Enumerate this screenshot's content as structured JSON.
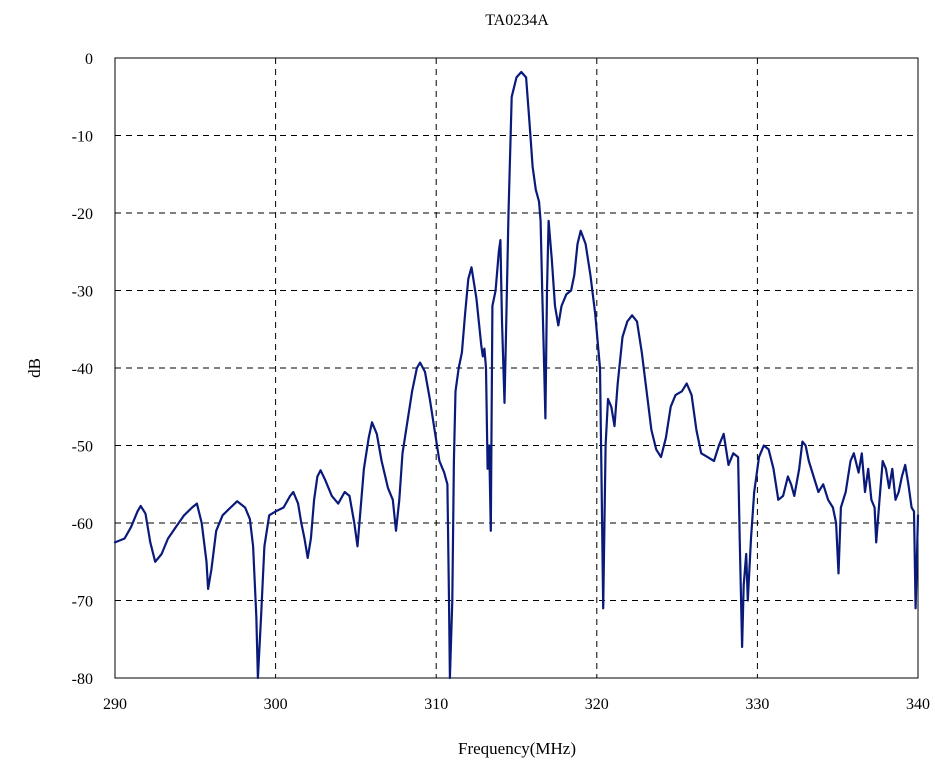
{
  "chart_data": {
    "type": "line",
    "title": "TA0234A",
    "xlabel": "Frequency(MHz)",
    "ylabel": "dB",
    "xlim": [
      290,
      340
    ],
    "ylim": [
      -80,
      0
    ],
    "x_ticks": [
      290,
      300,
      310,
      320,
      330,
      340
    ],
    "y_ticks": [
      0,
      -10,
      -20,
      -30,
      -40,
      -50,
      -60,
      -70,
      -80
    ],
    "x_tick_labels": [
      "290",
      "300",
      "310",
      "320",
      "330",
      "340"
    ],
    "y_tick_labels": [
      "0",
      "-10",
      "-20",
      "-30",
      "-40",
      "-50",
      "-60",
      "-70",
      "-80"
    ],
    "grid": true,
    "legend": "none",
    "series": [
      {
        "color": "#0a1a7a",
        "points": [
          [
            290.0,
            -62.5
          ],
          [
            290.6,
            -62
          ],
          [
            291.0,
            -60.5
          ],
          [
            291.4,
            -58.5
          ],
          [
            291.6,
            -57.8
          ],
          [
            291.9,
            -58.8
          ],
          [
            292.2,
            -62.5
          ],
          [
            292.5,
            -65
          ],
          [
            292.9,
            -64
          ],
          [
            293.3,
            -62
          ],
          [
            293.8,
            -60.5
          ],
          [
            294.3,
            -59
          ],
          [
            294.8,
            -58
          ],
          [
            295.1,
            -57.5
          ],
          [
            295.4,
            -60
          ],
          [
            295.7,
            -65
          ],
          [
            295.8,
            -68.5
          ],
          [
            296.0,
            -66
          ],
          [
            296.3,
            -61
          ],
          [
            296.7,
            -59
          ],
          [
            297.2,
            -58
          ],
          [
            297.6,
            -57.2
          ],
          [
            298.1,
            -58
          ],
          [
            298.4,
            -59.5
          ],
          [
            298.6,
            -63
          ],
          [
            298.8,
            -72
          ],
          [
            298.9,
            -80
          ],
          [
            299.1,
            -72
          ],
          [
            299.3,
            -63
          ],
          [
            299.6,
            -59
          ],
          [
            300.0,
            -58.5
          ],
          [
            300.5,
            -58
          ],
          [
            300.9,
            -56.5
          ],
          [
            301.1,
            -56
          ],
          [
            301.4,
            -57.5
          ],
          [
            301.6,
            -60
          ],
          [
            301.8,
            -62
          ],
          [
            302.0,
            -64.5
          ],
          [
            302.2,
            -62
          ],
          [
            302.4,
            -57
          ],
          [
            302.6,
            -54
          ],
          [
            302.8,
            -53.2
          ],
          [
            303.1,
            -54.5
          ],
          [
            303.5,
            -56.5
          ],
          [
            303.9,
            -57.5
          ],
          [
            304.3,
            -56
          ],
          [
            304.6,
            -56.5
          ],
          [
            304.9,
            -60
          ],
          [
            305.1,
            -63
          ],
          [
            305.3,
            -58
          ],
          [
            305.5,
            -53
          ],
          [
            305.8,
            -49
          ],
          [
            306.0,
            -47
          ],
          [
            306.3,
            -48.5
          ],
          [
            306.6,
            -52
          ],
          [
            307.0,
            -55.5
          ],
          [
            307.3,
            -57
          ],
          [
            307.5,
            -61
          ],
          [
            307.7,
            -57
          ],
          [
            307.9,
            -51
          ],
          [
            308.2,
            -47
          ],
          [
            308.5,
            -43
          ],
          [
            308.8,
            -40
          ],
          [
            309.0,
            -39.3
          ],
          [
            309.3,
            -40.5
          ],
          [
            309.6,
            -44
          ],
          [
            309.9,
            -48
          ],
          [
            310.2,
            -52
          ],
          [
            310.5,
            -53.5
          ],
          [
            310.7,
            -55
          ],
          [
            310.8,
            -70
          ],
          [
            310.85,
            -80
          ],
          [
            311.0,
            -70
          ],
          [
            311.1,
            -52
          ],
          [
            311.2,
            -43
          ],
          [
            311.4,
            -40
          ],
          [
            311.6,
            -38
          ],
          [
            311.8,
            -33
          ],
          [
            312.0,
            -28.5
          ],
          [
            312.2,
            -27
          ],
          [
            312.5,
            -31
          ],
          [
            312.8,
            -37
          ],
          [
            312.9,
            -38.5
          ],
          [
            313.0,
            -37.5
          ],
          [
            313.1,
            -40
          ],
          [
            313.2,
            -53
          ],
          [
            313.3,
            -50
          ],
          [
            313.4,
            -61
          ],
          [
            313.5,
            -32
          ],
          [
            313.7,
            -30
          ],
          [
            313.9,
            -25
          ],
          [
            314.0,
            -23.5
          ],
          [
            314.1,
            -34
          ],
          [
            314.25,
            -44.5
          ],
          [
            314.35,
            -35
          ],
          [
            314.5,
            -20
          ],
          [
            314.7,
            -5
          ],
          [
            315.0,
            -2.5
          ],
          [
            315.3,
            -1.8
          ],
          [
            315.6,
            -2.5
          ],
          [
            315.8,
            -8
          ],
          [
            316.0,
            -14
          ],
          [
            316.2,
            -17
          ],
          [
            316.4,
            -18.5
          ],
          [
            316.5,
            -21
          ],
          [
            316.6,
            -30
          ],
          [
            316.7,
            -38
          ],
          [
            316.8,
            -46.5
          ],
          [
            316.9,
            -30
          ],
          [
            317.0,
            -21
          ],
          [
            317.2,
            -26
          ],
          [
            317.4,
            -32
          ],
          [
            317.6,
            -34.5
          ],
          [
            317.8,
            -32
          ],
          [
            318.1,
            -30.5
          ],
          [
            318.4,
            -30
          ],
          [
            318.6,
            -28
          ],
          [
            318.8,
            -24
          ],
          [
            319.0,
            -22.3
          ],
          [
            319.3,
            -24
          ],
          [
            319.6,
            -28
          ],
          [
            319.9,
            -33
          ],
          [
            320.2,
            -40
          ],
          [
            320.3,
            -55
          ],
          [
            320.4,
            -71
          ],
          [
            320.55,
            -50
          ],
          [
            320.7,
            -44
          ],
          [
            320.9,
            -45
          ],
          [
            321.1,
            -47.5
          ],
          [
            321.3,
            -42
          ],
          [
            321.6,
            -36
          ],
          [
            321.9,
            -34
          ],
          [
            322.2,
            -33.2
          ],
          [
            322.5,
            -34
          ],
          [
            322.8,
            -38
          ],
          [
            323.1,
            -43
          ],
          [
            323.4,
            -48
          ],
          [
            323.7,
            -50.5
          ],
          [
            324.0,
            -51.5
          ],
          [
            324.3,
            -49
          ],
          [
            324.6,
            -45
          ],
          [
            324.9,
            -43.5
          ],
          [
            325.3,
            -43
          ],
          [
            325.6,
            -42
          ],
          [
            325.9,
            -43.5
          ],
          [
            326.2,
            -48
          ],
          [
            326.5,
            -51
          ],
          [
            326.9,
            -51.5
          ],
          [
            327.3,
            -52
          ],
          [
            327.6,
            -50
          ],
          [
            327.9,
            -48.5
          ],
          [
            328.2,
            -52.5
          ],
          [
            328.5,
            -51
          ],
          [
            328.8,
            -51.5
          ],
          [
            328.9,
            -62
          ],
          [
            329.05,
            -76
          ],
          [
            329.15,
            -68
          ],
          [
            329.3,
            -64
          ],
          [
            329.4,
            -70
          ],
          [
            329.6,
            -62
          ],
          [
            329.8,
            -56
          ],
          [
            330.1,
            -51.5
          ],
          [
            330.4,
            -50
          ],
          [
            330.7,
            -50.5
          ],
          [
            331.0,
            -53
          ],
          [
            331.3,
            -57
          ],
          [
            331.6,
            -56.5
          ],
          [
            331.9,
            -54
          ],
          [
            332.1,
            -55
          ],
          [
            332.3,
            -56.5
          ],
          [
            332.6,
            -53
          ],
          [
            332.8,
            -49.5
          ],
          [
            333.0,
            -50
          ],
          [
            333.2,
            -52
          ],
          [
            333.5,
            -54
          ],
          [
            333.8,
            -56
          ],
          [
            334.1,
            -55
          ],
          [
            334.4,
            -57
          ],
          [
            334.7,
            -58
          ],
          [
            334.9,
            -60
          ],
          [
            335.05,
            -66.5
          ],
          [
            335.2,
            -58
          ],
          [
            335.5,
            -56
          ],
          [
            335.8,
            -52
          ],
          [
            336.0,
            -51
          ],
          [
            336.3,
            -53.5
          ],
          [
            336.5,
            -51
          ],
          [
            336.7,
            -56
          ],
          [
            336.9,
            -53
          ],
          [
            337.1,
            -57
          ],
          [
            337.3,
            -58
          ],
          [
            337.4,
            -62.5
          ],
          [
            337.6,
            -57
          ],
          [
            337.8,
            -52
          ],
          [
            338.0,
            -53
          ],
          [
            338.2,
            -55.5
          ],
          [
            338.4,
            -53
          ],
          [
            338.6,
            -57
          ],
          [
            338.8,
            -56
          ],
          [
            339.0,
            -54
          ],
          [
            339.2,
            -52.5
          ],
          [
            339.4,
            -55
          ],
          [
            339.6,
            -58
          ],
          [
            339.75,
            -58.5
          ],
          [
            339.85,
            -71
          ],
          [
            340.0,
            -59
          ]
        ]
      }
    ]
  }
}
